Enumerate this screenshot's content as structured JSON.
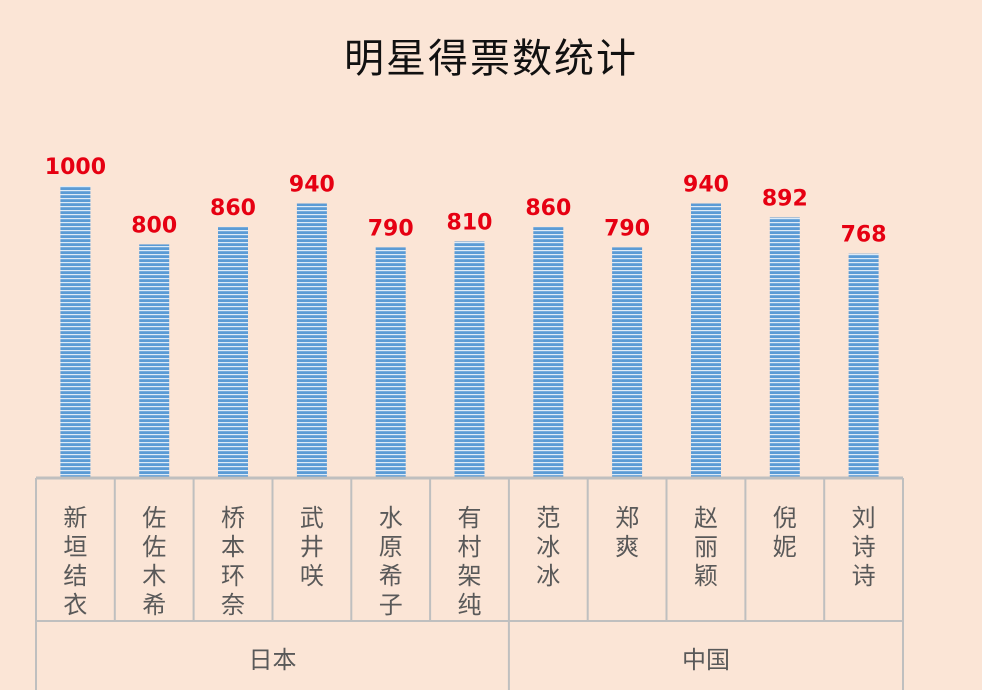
{
  "chart_data": {
    "type": "bar",
    "title": "明星得票数统计",
    "categories": [
      "新垣结衣",
      "佐佐木希",
      "桥本环奈",
      "武井咲",
      "水原希子",
      "有村架纯",
      "范冰冰",
      "郑爽",
      "赵丽颖",
      "倪妮",
      "刘诗诗"
    ],
    "values": [
      1000,
      800,
      860,
      940,
      790,
      810,
      860,
      790,
      940,
      892,
      768
    ],
    "groups": [
      {
        "name": "日本",
        "count": 6
      },
      {
        "name": "中国",
        "count": 5
      }
    ],
    "ylim": [
      0,
      1000
    ],
    "grid": false,
    "legend": "none",
    "colors": {
      "background": "#FBE5D6",
      "bar": "#5B9BD5",
      "bar_stripe": "#DEEBF7",
      "data_label": "#E60012",
      "axis_line": "#BFBFBF",
      "category_text": "#595959",
      "title": "#111111"
    }
  }
}
